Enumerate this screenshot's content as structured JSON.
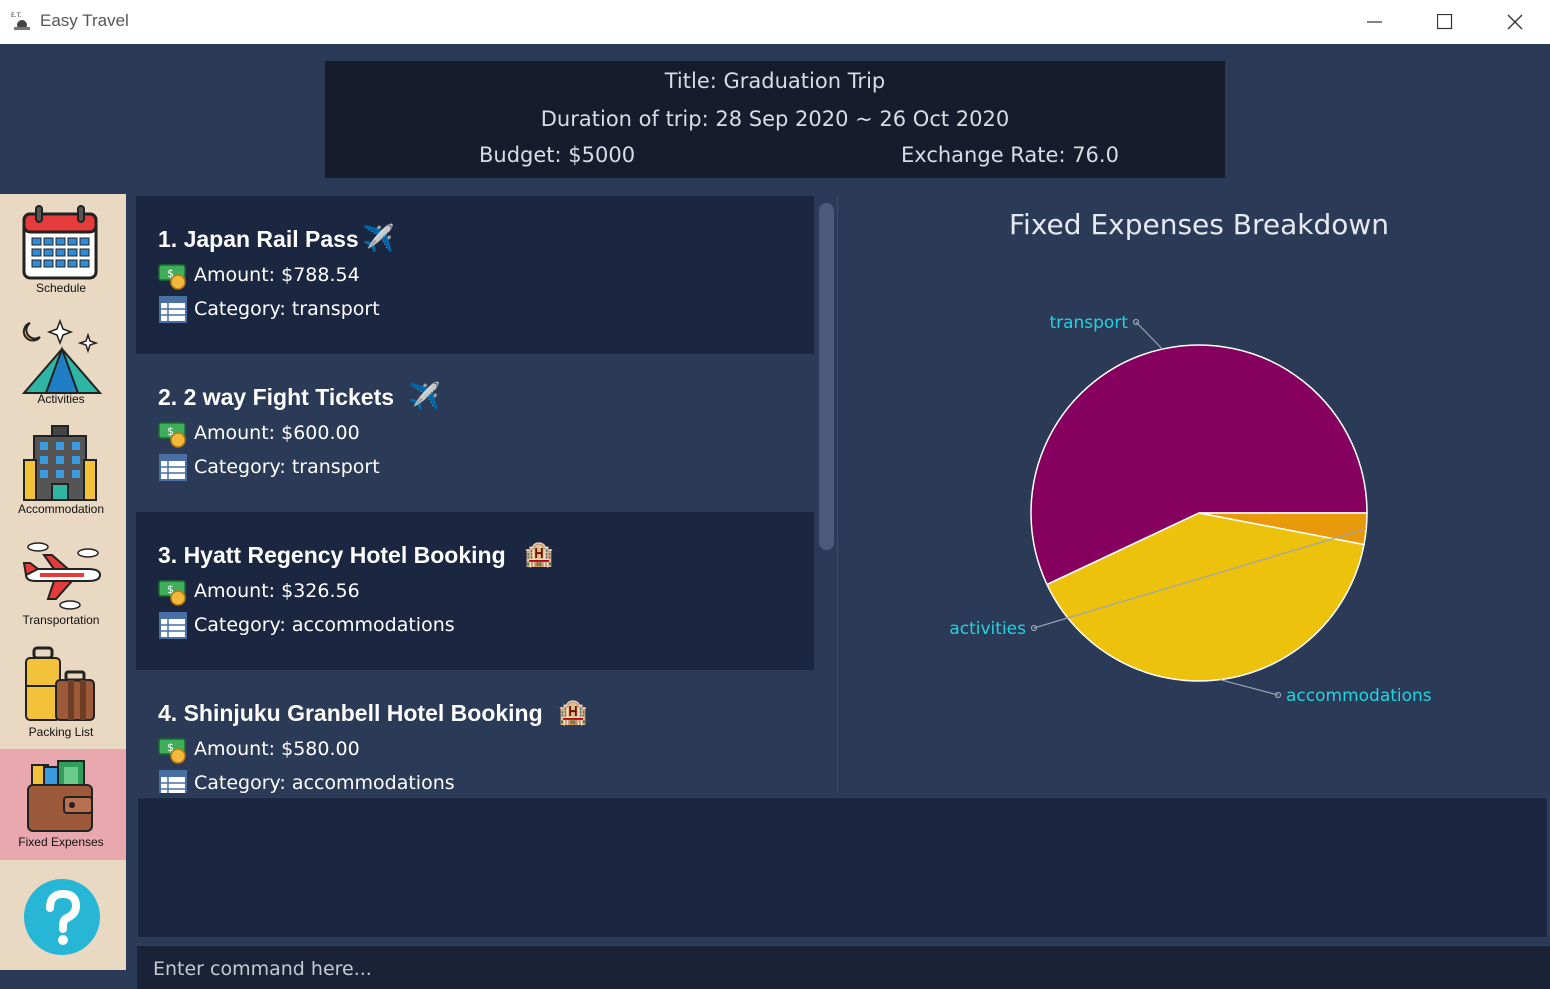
{
  "window": {
    "title": "Easy Travel",
    "logo_text": "E.T."
  },
  "trip": {
    "title": "Title: Graduation Trip",
    "duration": "Duration of trip: 28 Sep 2020 ~ 26 Oct 2020",
    "budget": "Budget: $5000",
    "exchange_rate": "Exchange Rate: 76.0"
  },
  "sidebar": {
    "items": [
      {
        "label": "Schedule",
        "icon": "calendar-icon"
      },
      {
        "label": "Activities",
        "icon": "tent-icon"
      },
      {
        "label": "Accommodation",
        "icon": "hotel-icon"
      },
      {
        "label": "Transportation",
        "icon": "airplane-icon"
      },
      {
        "label": "Packing List",
        "icon": "luggage-icon"
      },
      {
        "label": "Fixed Expenses",
        "icon": "wallet-icon"
      },
      {
        "label": "",
        "icon": "help-icon"
      }
    ],
    "active_index": 5
  },
  "expenses": [
    {
      "title": "1.  Japan Rail Pass",
      "emoji": "✈️",
      "amount": "Amount: $788.54",
      "category": "Category: transport"
    },
    {
      "title": "2.  2 way Fight Tickets",
      "emoji": "✈️",
      "amount": "Amount: $600.00",
      "category": "Category: transport"
    },
    {
      "title": "3.  Hyatt Regency Hotel Booking",
      "emoji": "🏨",
      "amount": "Amount: $326.56",
      "category": "Category: accommodations"
    },
    {
      "title": "4.  Shinjuku Granbell Hotel Booking",
      "emoji": "🏨",
      "amount": "Amount: $580.00",
      "category": "Category: accommodations"
    }
  ],
  "chart_data": {
    "type": "pie",
    "title": "Fixed Expenses Breakdown",
    "slices": [
      {
        "label": "transport",
        "value": 57,
        "color": "#85005f"
      },
      {
        "label": "accommodations",
        "value": 40,
        "color": "#edc20d"
      },
      {
        "label": "activities",
        "value": 3,
        "color": "#e89a0a"
      }
    ],
    "label_color": "#22d3e0"
  },
  "command": {
    "placeholder": "Enter command here..."
  }
}
